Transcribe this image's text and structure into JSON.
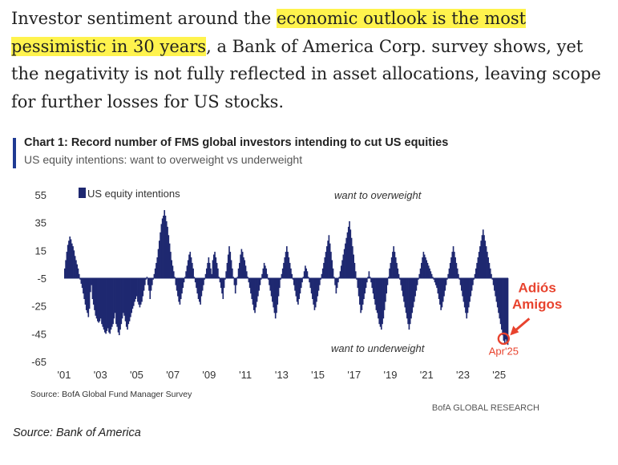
{
  "article": {
    "intro_pre": "Investor sentiment around the ",
    "intro_highlight": "economic outlook is the most pessimistic in 30 years",
    "intro_post": ", a Bank of America Corp. survey shows, yet the negativity is not fully reflected in asset allocations, leaving scope for further losses for US stocks."
  },
  "chart_header": {
    "title": "Chart 1: Record number of FMS global investors intending to cut US equities",
    "subtitle": "US equity intentions: want to overweight vs underweight"
  },
  "chart_footer": {
    "source": "Source:  BofA Global Fund Manager Survey",
    "brand": "BofA GLOBAL RESEARCH"
  },
  "caption": "Source: Bank of America",
  "chart_data": {
    "type": "bar",
    "ylim": [
      -65,
      55
    ],
    "yticks": [
      55,
      35,
      15,
      -5,
      -25,
      -45,
      -65
    ],
    "xlim": [
      2001.0,
      2025.5
    ],
    "xticks": [
      {
        "value": 2001,
        "label": "'01"
      },
      {
        "value": 2003,
        "label": "'03"
      },
      {
        "value": 2005,
        "label": "'05"
      },
      {
        "value": 2007,
        "label": "'07"
      },
      {
        "value": 2009,
        "label": "'09"
      },
      {
        "value": 2011,
        "label": "'11"
      },
      {
        "value": 2013,
        "label": "'13"
      },
      {
        "value": 2015,
        "label": "'15"
      },
      {
        "value": 2017,
        "label": "'17"
      },
      {
        "value": 2019,
        "label": "'19"
      },
      {
        "value": 2021,
        "label": "'21"
      },
      {
        "value": 2023,
        "label": "'23"
      },
      {
        "value": 2025,
        "label": "'25"
      }
    ],
    "baseline": -5,
    "color": "#1e2870",
    "accent_color": "#e8432e",
    "legend": {
      "label": "US equity intentions",
      "placement": "top-left"
    },
    "series": [
      {
        "name": "US equity intentions",
        "values": [
          2,
          8,
          14,
          19,
          22,
          25,
          23,
          20,
          18,
          15,
          11,
          8,
          5,
          2,
          -2,
          -6,
          -9,
          -12,
          -16,
          -20,
          -24,
          -28,
          -30,
          -33,
          -27,
          -15,
          -10,
          -20,
          -24,
          -28,
          -32,
          -34,
          -36,
          -37,
          -36,
          -34,
          -38,
          -40,
          -42,
          -44,
          -45,
          -43,
          -41,
          -44,
          -45,
          -42,
          -40,
          -38,
          -34,
          -30,
          -38,
          -40,
          -44,
          -46,
          -42,
          -38,
          -34,
          -30,
          -32,
          -36,
          -40,
          -42,
          -38,
          -36,
          -33,
          -30,
          -27,
          -25,
          -22,
          -20,
          -18,
          -22,
          -24,
          -26,
          -24,
          -22,
          -18,
          -14,
          -10,
          -6,
          -4,
          -10,
          -14,
          -20,
          -14,
          -10,
          -6,
          -2,
          2,
          6,
          10,
          16,
          22,
          28,
          34,
          38,
          40,
          44,
          40,
          36,
          32,
          26,
          20,
          14,
          8,
          4,
          0,
          -4,
          -10,
          -14,
          -18,
          -22,
          -24,
          -20,
          -16,
          -12,
          -8,
          -4,
          0,
          4,
          8,
          12,
          14,
          10,
          6,
          2,
          -4,
          -8,
          -12,
          -16,
          -20,
          -22,
          -24,
          -18,
          -14,
          -10,
          -6,
          -2,
          2,
          6,
          10,
          6,
          2,
          -2,
          8,
          12,
          14,
          10,
          6,
          2,
          -4,
          -8,
          -12,
          -16,
          -20,
          -12,
          -6,
          0,
          6,
          12,
          18,
          14,
          8,
          2,
          -4,
          -10,
          -16,
          -10,
          -4,
          2,
          6,
          12,
          16,
          14,
          10,
          8,
          4,
          0,
          -4,
          -8,
          -12,
          -16,
          -20,
          -24,
          -28,
          -30,
          -26,
          -22,
          -18,
          -14,
          -10,
          -6,
          -2,
          2,
          6,
          4,
          2,
          -2,
          -6,
          -10,
          -14,
          -18,
          -22,
          -26,
          -30,
          -34,
          -30,
          -24,
          -18,
          -12,
          -6,
          -2,
          2,
          6,
          10,
          14,
          18,
          14,
          10,
          6,
          2,
          -2,
          -6,
          -10,
          -14,
          -18,
          -22,
          -24,
          -20,
          -16,
          -12,
          -8,
          -4,
          0,
          4,
          2,
          0,
          -4,
          -8,
          -12,
          -16,
          -20,
          -24,
          -28,
          -26,
          -22,
          -18,
          -14,
          -10,
          -6,
          -2,
          2,
          6,
          10,
          14,
          18,
          22,
          26,
          20,
          14,
          8,
          2,
          -4,
          -10,
          -16,
          -12,
          -8,
          -4,
          0,
          4,
          8,
          12,
          16,
          20,
          24,
          28,
          32,
          36,
          30,
          24,
          18,
          12,
          6,
          0,
          -6,
          -12,
          -18,
          -24,
          -30,
          -28,
          -24,
          -20,
          -16,
          -12,
          -8,
          -4,
          0,
          -4,
          -8,
          -12,
          -16,
          -20,
          -24,
          -28,
          -30,
          -34,
          -38,
          -40,
          -42,
          -38,
          -34,
          -28,
          -22,
          -16,
          -10,
          -4,
          2,
          6,
          10,
          14,
          18,
          14,
          10,
          6,
          2,
          -2,
          -6,
          -10,
          -14,
          -18,
          -22,
          -26,
          -30,
          -34,
          -38,
          -42,
          -38,
          -34,
          -30,
          -26,
          -22,
          -18,
          -14,
          -10,
          -6,
          -2,
          2,
          6,
          10,
          14,
          12,
          10,
          8,
          6,
          4,
          2,
          0,
          -2,
          -4,
          -6,
          -8,
          -10,
          -12,
          -16,
          -20,
          -24,
          -28,
          -26,
          -22,
          -18,
          -14,
          -10,
          -6,
          -2,
          2,
          6,
          10,
          14,
          18,
          14,
          10,
          6,
          2,
          -2,
          -6,
          -10,
          -14,
          -18,
          -22,
          -26,
          -30,
          -34,
          -30,
          -26,
          -22,
          -18,
          -14,
          -10,
          -6,
          -2,
          2,
          6,
          10,
          14,
          18,
          22,
          26,
          30,
          26,
          22,
          18,
          14,
          10,
          6,
          2,
          -2,
          -6,
          -10,
          -14,
          -18,
          -22,
          -26,
          -30,
          -34,
          -38,
          -42,
          -46,
          -50,
          -52,
          -49,
          -51,
          -53
        ]
      }
    ],
    "annotations": [
      {
        "text": "want to overweight",
        "x": 2018.3,
        "y": 52
      },
      {
        "text": "want to underweight",
        "x": 2018.3,
        "y": -58
      },
      {
        "text": "Apr'25",
        "x": 2025.25,
        "y": -60,
        "color": "accent"
      },
      {
        "text": "Adiós",
        "x": 2027.1,
        "y": -15,
        "color": "accent"
      },
      {
        "text": "Amigos",
        "x": 2027.1,
        "y": -27,
        "color": "accent"
      }
    ],
    "highlight": {
      "x": 2025.25,
      "y": -48.5
    }
  }
}
